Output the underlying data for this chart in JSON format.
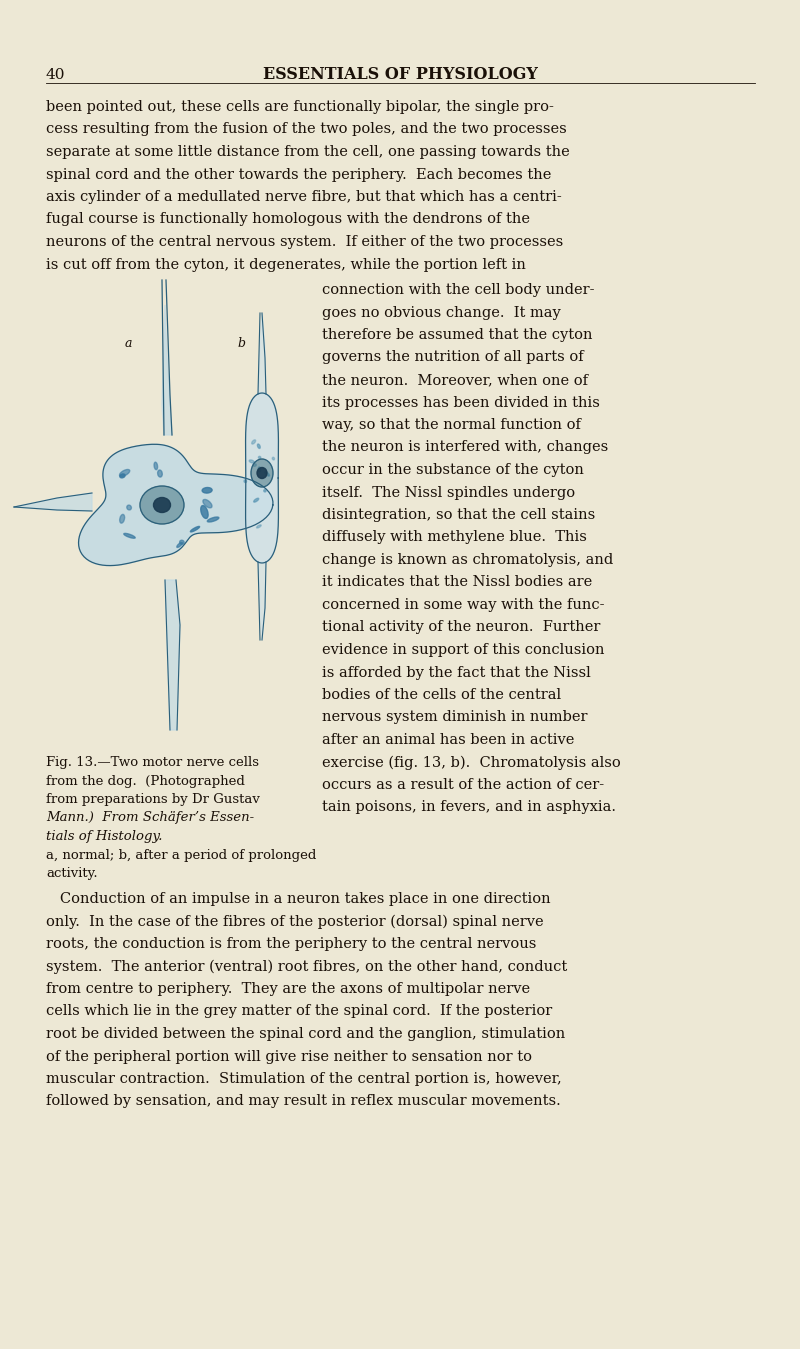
{
  "bg_color": "#ede8d5",
  "page_number": "40",
  "header": "ESSENTIALS OF PHYSIOLOGY",
  "text_color": "#1a1008",
  "body_text": [
    "been pointed out, these cells are functionally bipolar, the single pro-",
    "cess resulting from the fusion of the two poles, and the two processes",
    "separate at some little distance from the cell, one passing towards the",
    "spinal cord and the other towards the periphery.  Each becomes the",
    "axis cylinder of a medullated nerve fibre, but that which has a centri-",
    "fugal course is functionally homologous with the dendrons of the",
    "neurons of the central nervous system.  If either of the two processes",
    "is cut off from the cyton, it degenerates, while the portion left in"
  ],
  "right_col": [
    "connection with the cell body under-",
    "goes no obvious change.  It may",
    "therefore be assumed that the cyton",
    "governs the nutrition of all parts of",
    "the neuron.  Moreover, when one of",
    "its processes has been divided in this",
    "way, so that the normal function of",
    "the neuron is interfered with, changes",
    "occur in the substance of the cyton",
    "itself.  The Nissl spindles undergo",
    "disintegration, so that the cell stains",
    "diffusely with methylene blue.  This",
    "change is known as chromatolysis, and",
    "it indicates that the Nissl bodies are",
    "concerned in some way with the func-",
    "tional activity of the neuron.  Further",
    "evidence in support of this conclusion",
    "is afforded by the fact that the Nissl",
    "bodies of the cells of the central",
    "nervous system diminish in number",
    "after an animal has been in active",
    "exercise (fig. 13, b).  Chromatolysis also",
    "occurs as a result of the action of cer-",
    "tain poisons, in fevers, and in asphyxia."
  ],
  "caption_lines": [
    "Fig. 13.—Two motor nerve cells",
    "from the dog.  (Photographed",
    "from preparations by Dr Gustav",
    "Mann.)  From Schäfer’s Essen-",
    "tials of Histology.",
    "a, normal; b, after a period of prolonged",
    "activity."
  ],
  "caption_italic_lines": [
    3,
    4
  ],
  "bottom_text": [
    "   Conduction of an impulse in a neuron takes place in one direction",
    "only.  In the case of the fibres of the posterior (dorsal) spinal nerve",
    "roots, the conduction is from the periphery to the central nervous",
    "system.  The anterior (ventral) root fibres, on the other hand, conduct",
    "from centre to periphery.  They are the axons of multipolar nerve",
    "cells which lie in the grey matter of the spinal cord.  If the posterior",
    "root be divided between the spinal cord and the ganglion, stimulation",
    "of the peripheral portion will give rise neither to sensation nor to",
    "muscular contraction.  Stimulation of the central portion is, however,",
    "followed by sensation, and may result in reflex muscular movements."
  ],
  "cell_fill_a": "#c2dae4",
  "cell_fill_b": "#cde0e8",
  "cell_nissl_a": "#3878a0",
  "cell_nissl_b": "#5090b0",
  "cell_nucleus_a": "#2a6070",
  "cell_nucleus_b": "#2a6070",
  "cell_nucleolus": "#1a3a50",
  "cell_outline": "#2a5f7a"
}
